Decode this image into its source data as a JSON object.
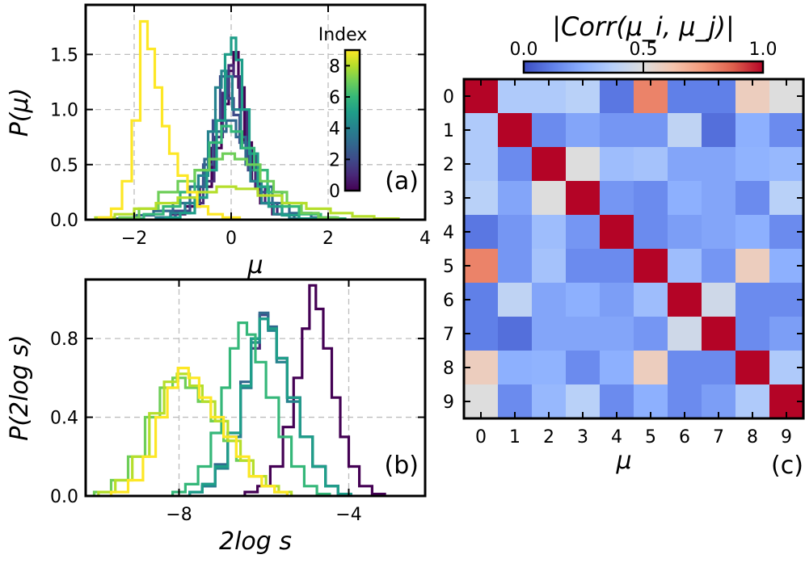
{
  "chart_data": [
    {
      "id": "a",
      "type": "line",
      "panel_label": "(a)",
      "xlabel": "μ",
      "ylabel": "P(μ)",
      "xlim": [
        -3,
        4
      ],
      "ylim": [
        0,
        1.95
      ],
      "xticks": [
        {
          "v": -2,
          "t": "−2"
        },
        {
          "v": 0,
          "t": "0"
        },
        {
          "v": 2,
          "t": "2"
        },
        {
          "v": 4,
          "t": "4"
        }
      ],
      "yticks": [
        {
          "v": 0,
          "t": "0.0"
        },
        {
          "v": 0.5,
          "t": "0.5"
        },
        {
          "v": 1.0,
          "t": "1.0"
        },
        {
          "v": 1.5,
          "t": "1.5"
        }
      ],
      "grid": true,
      "colorbar": {
        "title": "Index",
        "ticks": [
          "0",
          "2",
          "4",
          "6",
          "8"
        ],
        "range": [
          0,
          9
        ]
      },
      "series": [
        {
          "index": 0,
          "color": "#440154",
          "x": [
            -1.4,
            -1.1,
            -0.8,
            -0.5,
            -0.3,
            -0.1,
            0.0,
            0.1,
            0.2,
            0.35,
            0.5,
            0.7,
            1.0,
            1.4
          ],
          "y": [
            0.02,
            0.05,
            0.12,
            0.3,
            0.65,
            1.05,
            1.35,
            1.52,
            1.2,
            0.7,
            0.35,
            0.15,
            0.05,
            0.01
          ]
        },
        {
          "index": 1,
          "color": "#482878",
          "x": [
            -1.3,
            -1.0,
            -0.7,
            -0.45,
            -0.25,
            -0.1,
            0.0,
            0.1,
            0.25,
            0.4,
            0.6,
            0.8,
            1.1,
            1.5
          ],
          "y": [
            0.02,
            0.06,
            0.15,
            0.35,
            0.75,
            1.15,
            1.4,
            1.3,
            1.0,
            0.6,
            0.3,
            0.15,
            0.05,
            0.01
          ]
        },
        {
          "index": 2,
          "color": "#3e4a89",
          "x": [
            -1.3,
            -1.0,
            -0.7,
            -0.45,
            -0.3,
            -0.15,
            0.0,
            0.1,
            0.25,
            0.45,
            0.65,
            0.9,
            1.2,
            1.6
          ],
          "y": [
            0.02,
            0.08,
            0.2,
            0.5,
            0.9,
            1.3,
            1.1,
            0.95,
            0.7,
            0.45,
            0.25,
            0.12,
            0.05,
            0.01
          ]
        },
        {
          "index": 3,
          "color": "#31688e",
          "x": [
            -2.2,
            -1.8,
            -1.4,
            -1.0,
            -0.7,
            -0.4,
            -0.2,
            0.0,
            0.2,
            0.4,
            0.7,
            1.0,
            1.4,
            1.9
          ],
          "y": [
            0.01,
            0.04,
            0.08,
            0.15,
            0.3,
            0.55,
            0.8,
            0.9,
            0.75,
            0.5,
            0.3,
            0.15,
            0.06,
            0.02
          ]
        },
        {
          "index": 4,
          "color": "#26828e",
          "x": [
            -1.4,
            -1.1,
            -0.8,
            -0.55,
            -0.4,
            -0.25,
            -0.15,
            -0.05,
            0.1,
            0.3,
            0.5,
            0.75,
            1.0,
            1.4
          ],
          "y": [
            0.02,
            0.06,
            0.15,
            0.4,
            0.8,
            1.2,
            1.35,
            1.3,
            1.0,
            0.65,
            0.35,
            0.15,
            0.05,
            0.01
          ]
        },
        {
          "index": 5,
          "color": "#1f9e89",
          "x": [
            -1.2,
            -0.9,
            -0.6,
            -0.4,
            -0.2,
            -0.05,
            0.05,
            0.15,
            0.3,
            0.45,
            0.65,
            0.9,
            1.2,
            1.6
          ],
          "y": [
            0.02,
            0.06,
            0.2,
            0.45,
            0.9,
            1.5,
            1.65,
            1.45,
            1.0,
            0.6,
            0.3,
            0.12,
            0.04,
            0.01
          ]
        },
        {
          "index": 6,
          "color": "#35b779",
          "x": [
            -2.0,
            -1.6,
            -1.2,
            -0.9,
            -0.6,
            -0.3,
            -0.1,
            0.1,
            0.35,
            0.6,
            0.9,
            1.2,
            1.6,
            2.1
          ],
          "y": [
            0.01,
            0.05,
            0.12,
            0.25,
            0.45,
            0.7,
            0.85,
            0.8,
            0.65,
            0.45,
            0.25,
            0.12,
            0.05,
            0.01
          ]
        },
        {
          "index": 7,
          "color": "#6ece58",
          "x": [
            -2.1,
            -1.7,
            -1.3,
            -0.9,
            -0.6,
            -0.3,
            -0.05,
            0.2,
            0.45,
            0.75,
            1.0,
            1.3,
            1.6,
            2.0
          ],
          "y": [
            0.02,
            0.1,
            0.25,
            0.35,
            0.45,
            0.55,
            0.6,
            0.55,
            0.5,
            0.35,
            0.25,
            0.15,
            0.06,
            0.02
          ]
        },
        {
          "index": 8,
          "color": "#b5de2b",
          "x": [
            -2.6,
            -2.2,
            -1.8,
            -1.3,
            -0.9,
            -0.5,
            -0.1,
            0.3,
            0.8,
            1.3,
            1.8,
            2.3,
            2.7,
            3.2
          ],
          "y": [
            0.02,
            0.05,
            0.1,
            0.15,
            0.2,
            0.25,
            0.3,
            0.28,
            0.22,
            0.15,
            0.1,
            0.06,
            0.03,
            0.01
          ]
        },
        {
          "index": 9,
          "color": "#fde725",
          "x": [
            -2.6,
            -2.35,
            -2.15,
            -1.95,
            -1.8,
            -1.65,
            -1.5,
            -1.35,
            -1.2,
            -1.0,
            -0.8,
            -0.6,
            -0.35,
            0.0
          ],
          "y": [
            0.02,
            0.1,
            0.35,
            0.9,
            1.8,
            1.55,
            1.2,
            0.85,
            0.6,
            0.4,
            0.25,
            0.12,
            0.05,
            0.02
          ]
        }
      ]
    },
    {
      "id": "b",
      "type": "line",
      "panel_label": "(b)",
      "xlabel": "2log s",
      "ylabel": "P(2log s)",
      "xlim": [
        -10.2,
        -2.2
      ],
      "ylim": [
        0,
        1.1
      ],
      "xticks": [
        {
          "v": -8,
          "t": "−8"
        },
        {
          "v": -4,
          "t": "−4"
        }
      ],
      "yticks": [
        {
          "v": 0,
          "t": "0.0"
        },
        {
          "v": 0.4,
          "t": "0.4"
        },
        {
          "v": 0.8,
          "t": "0.8"
        }
      ],
      "grid": true,
      "series": [
        {
          "index": 0,
          "color": "#440154",
          "x": [
            -6.3,
            -6.0,
            -5.7,
            -5.4,
            -5.2,
            -5.0,
            -4.85,
            -4.7,
            -4.5,
            -4.3,
            -4.1,
            -3.9,
            -3.6,
            -3.3
          ],
          "y": [
            0.02,
            0.05,
            0.15,
            0.35,
            0.6,
            0.85,
            1.07,
            0.95,
            0.75,
            0.5,
            0.3,
            0.15,
            0.05,
            0.01
          ]
        },
        {
          "index": 1,
          "color": "#482878",
          "x": [
            -7.6,
            -7.3,
            -7.0,
            -6.7,
            -6.4,
            -6.2,
            -6.0,
            -5.8,
            -5.6,
            -5.3,
            -5.0,
            -4.7,
            -4.4,
            -4.1
          ],
          "y": [
            0.02,
            0.05,
            0.15,
            0.3,
            0.55,
            0.75,
            0.9,
            0.85,
            0.7,
            0.5,
            0.3,
            0.15,
            0.05,
            0.01
          ]
        },
        {
          "index": 2,
          "color": "#3e4a89",
          "x": [
            -7.6,
            -7.3,
            -7.0,
            -6.7,
            -6.4,
            -6.2,
            -6.0,
            -5.8,
            -5.6,
            -5.3,
            -5.0,
            -4.7,
            -4.4,
            -4.1
          ],
          "y": [
            0.02,
            0.05,
            0.15,
            0.3,
            0.55,
            0.8,
            0.92,
            0.85,
            0.7,
            0.5,
            0.3,
            0.15,
            0.05,
            0.01
          ]
        },
        {
          "index": 3,
          "color": "#31688e",
          "x": [
            -7.6,
            -7.3,
            -7.0,
            -6.7,
            -6.4,
            -6.2,
            -6.0,
            -5.8,
            -5.6,
            -5.3,
            -5.0,
            -4.7,
            -4.4,
            -4.1
          ],
          "y": [
            0.02,
            0.06,
            0.16,
            0.32,
            0.58,
            0.8,
            0.93,
            0.86,
            0.7,
            0.5,
            0.3,
            0.15,
            0.05,
            0.01
          ]
        },
        {
          "index": 4,
          "color": "#26828e",
          "x": [
            -7.6,
            -7.3,
            -7.0,
            -6.7,
            -6.4,
            -6.2,
            -6.0,
            -5.8,
            -5.6,
            -5.3,
            -5.0,
            -4.7,
            -4.4,
            -4.1
          ],
          "y": [
            0.02,
            0.05,
            0.14,
            0.3,
            0.55,
            0.78,
            0.9,
            0.84,
            0.68,
            0.48,
            0.3,
            0.15,
            0.05,
            0.01
          ]
        },
        {
          "index": 5,
          "color": "#1f9e89",
          "x": [
            -7.6,
            -7.3,
            -7.0,
            -6.7,
            -6.4,
            -6.2,
            -6.0,
            -5.8,
            -5.6,
            -5.3,
            -5.0,
            -4.7,
            -4.4,
            -4.1
          ],
          "y": [
            0.02,
            0.06,
            0.15,
            0.32,
            0.56,
            0.8,
            0.9,
            0.85,
            0.7,
            0.5,
            0.3,
            0.15,
            0.05,
            0.01
          ]
        },
        {
          "index": 6,
          "color": "#35b779",
          "x": [
            -8.0,
            -7.7,
            -7.4,
            -7.1,
            -6.9,
            -6.7,
            -6.5,
            -6.3,
            -6.1,
            -5.8,
            -5.5,
            -5.2,
            -4.9,
            -4.6
          ],
          "y": [
            0.02,
            0.06,
            0.15,
            0.32,
            0.55,
            0.75,
            0.88,
            0.82,
            0.68,
            0.5,
            0.3,
            0.15,
            0.05,
            0.01
          ]
        },
        {
          "index": 7,
          "color": "#6ece58",
          "x": [
            -9.8,
            -9.4,
            -9.0,
            -8.6,
            -8.3,
            -8.0,
            -7.7,
            -7.4,
            -7.1,
            -6.8,
            -6.5,
            -6.2,
            -5.9,
            -5.6
          ],
          "y": [
            0.02,
            0.08,
            0.2,
            0.4,
            0.55,
            0.6,
            0.55,
            0.48,
            0.38,
            0.28,
            0.18,
            0.1,
            0.05,
            0.02
          ]
        },
        {
          "index": 8,
          "color": "#b5de2b",
          "x": [
            -9.7,
            -9.3,
            -8.9,
            -8.5,
            -8.2,
            -7.9,
            -7.6,
            -7.3,
            -7.0,
            -6.7,
            -6.4,
            -6.1,
            -5.8,
            -5.5
          ],
          "y": [
            0.02,
            0.08,
            0.2,
            0.42,
            0.58,
            0.62,
            0.56,
            0.48,
            0.38,
            0.28,
            0.18,
            0.1,
            0.05,
            0.02
          ]
        },
        {
          "index": 9,
          "color": "#fde725",
          "x": [
            -9.4,
            -9.0,
            -8.7,
            -8.4,
            -8.15,
            -7.9,
            -7.65,
            -7.4,
            -7.1,
            -6.8,
            -6.5,
            -6.2,
            -5.9,
            -5.6
          ],
          "y": [
            0.02,
            0.08,
            0.2,
            0.4,
            0.55,
            0.65,
            0.6,
            0.5,
            0.4,
            0.3,
            0.2,
            0.1,
            0.05,
            0.02
          ]
        }
      ]
    },
    {
      "id": "c",
      "type": "heatmap",
      "panel_label": "(c)",
      "title": "|Corr(μ_i, μ_j)|",
      "xlabel": "μ",
      "labels": [
        "0",
        "1",
        "2",
        "3",
        "4",
        "5",
        "6",
        "7",
        "8",
        "9"
      ],
      "colorbar": {
        "ticks": [
          "0.0",
          "0.5",
          "1.0"
        ],
        "range": [
          0,
          1
        ]
      },
      "values": [
        [
          1.0,
          0.35,
          0.35,
          0.38,
          0.1,
          0.8,
          0.12,
          0.12,
          0.58,
          0.5
        ],
        [
          0.35,
          1.0,
          0.15,
          0.22,
          0.18,
          0.18,
          0.4,
          0.08,
          0.25,
          0.15
        ],
        [
          0.35,
          0.15,
          1.0,
          0.5,
          0.3,
          0.32,
          0.22,
          0.22,
          0.26,
          0.28
        ],
        [
          0.38,
          0.22,
          0.5,
          1.0,
          0.18,
          0.15,
          0.25,
          0.22,
          0.15,
          0.38
        ],
        [
          0.1,
          0.18,
          0.3,
          0.18,
          1.0,
          0.15,
          0.2,
          0.22,
          0.25,
          0.15
        ],
        [
          0.8,
          0.18,
          0.32,
          0.15,
          0.15,
          1.0,
          0.3,
          0.18,
          0.58,
          0.25
        ],
        [
          0.12,
          0.4,
          0.22,
          0.25,
          0.2,
          0.3,
          1.0,
          0.45,
          0.15,
          0.15
        ],
        [
          0.12,
          0.08,
          0.22,
          0.22,
          0.22,
          0.18,
          0.45,
          1.0,
          0.15,
          0.2
        ],
        [
          0.58,
          0.25,
          0.26,
          0.15,
          0.25,
          0.58,
          0.15,
          0.15,
          1.0,
          0.35
        ],
        [
          0.5,
          0.15,
          0.28,
          0.38,
          0.15,
          0.25,
          0.15,
          0.2,
          0.35,
          1.0
        ]
      ]
    }
  ]
}
